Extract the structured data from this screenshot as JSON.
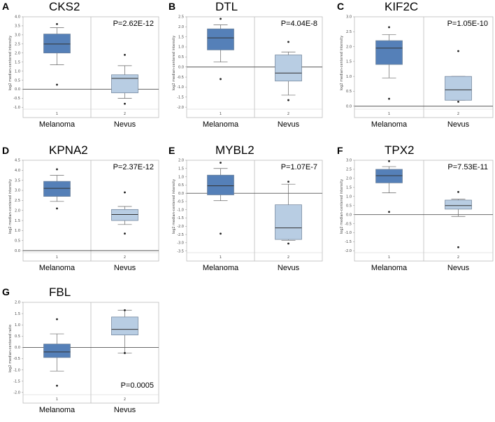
{
  "chart_data": [
    {
      "type": "box",
      "letter": "A",
      "title": "CKS2",
      "p_value": "P=2.62E-12",
      "p_pos": "top-right",
      "ylabel": "log2 median-centered intensity",
      "ylim": [
        -1.1,
        4.0
      ],
      "yticks": [
        4.0,
        3.5,
        3.0,
        2.5,
        2.0,
        1.5,
        1.0,
        0.5,
        0.0,
        -0.5,
        -1.0
      ],
      "ytick_labels": [
        "4.0",
        "3.5",
        "3.0",
        "2.5",
        "2.0",
        "1.5",
        "1.0",
        "0.5",
        "0.0",
        "-0.5",
        "-1.0"
      ],
      "groups": [
        {
          "id": "1",
          "name": "Melanoma",
          "color": "#5580b8",
          "q1": 2.0,
          "median": 2.5,
          "q3": 3.05,
          "whisker_low": 1.35,
          "whisker_high": 3.4,
          "outliers": [
            3.6,
            0.25
          ]
        },
        {
          "id": "2",
          "name": "Nevus",
          "color": "#b8cde3",
          "q1": -0.2,
          "median": 0.6,
          "q3": 0.8,
          "whisker_low": -0.5,
          "whisker_high": 1.3,
          "outliers": [
            1.9,
            -0.8
          ]
        }
      ]
    },
    {
      "type": "box",
      "letter": "B",
      "title": "DTL",
      "p_value": "P=4.04E-8",
      "p_pos": "top-right",
      "ylabel": "log2 median-centered intensity",
      "ylim": [
        -2.1,
        2.5
      ],
      "yticks": [
        2.5,
        2.0,
        1.5,
        1.0,
        0.5,
        0.0,
        -0.5,
        -1.0,
        -1.5,
        -2.0
      ],
      "ytick_labels": [
        "2.5",
        "2.0",
        "1.5",
        "1.0",
        "0.5",
        "0.0",
        "-0.5",
        "-1.0",
        "-1.5",
        "-2.0"
      ],
      "groups": [
        {
          "id": "1",
          "name": "Melanoma",
          "color": "#5580b8",
          "q1": 0.85,
          "median": 1.45,
          "q3": 1.9,
          "whisker_low": 0.25,
          "whisker_high": 2.1,
          "outliers": [
            2.4,
            -0.6
          ]
        },
        {
          "id": "2",
          "name": "Nevus",
          "color": "#b8cde3",
          "q1": -0.7,
          "median": -0.3,
          "q3": 0.6,
          "whisker_low": -1.4,
          "whisker_high": 0.75,
          "outliers": [
            1.25,
            -1.65
          ]
        }
      ]
    },
    {
      "type": "box",
      "letter": "C",
      "title": "KIF2C",
      "p_value": "P=1.05E-10",
      "p_pos": "top-right",
      "ylabel": "log2 median-centered intensity",
      "ylim": [
        -0.1,
        3.0
      ],
      "yticks": [
        3.0,
        2.5,
        2.0,
        1.5,
        1.0,
        0.5,
        0.0
      ],
      "ytick_labels": [
        "3.0",
        "2.5",
        "2.0",
        "1.5",
        "1.0",
        "0.5",
        "0.0"
      ],
      "groups": [
        {
          "id": "1",
          "name": "Melanoma",
          "color": "#5580b8",
          "q1": 1.4,
          "median": 1.95,
          "q3": 2.2,
          "whisker_low": 0.95,
          "whisker_high": 2.4,
          "outliers": [
            2.65,
            0.25
          ]
        },
        {
          "id": "2",
          "name": "Nevus",
          "color": "#b8cde3",
          "q1": 0.2,
          "median": 0.55,
          "q3": 1.0,
          "whisker_low": 0.2,
          "whisker_high": 1.0,
          "outliers": [
            1.85,
            0.15
          ]
        }
      ]
    },
    {
      "type": "box",
      "letter": "D",
      "title": "KPNA2",
      "p_value": "P=2.37E-12",
      "p_pos": "top-right",
      "ylabel": "log2 median-centered intensity",
      "ylim": [
        -0.1,
        4.5
      ],
      "yticks": [
        4.5,
        4.0,
        3.5,
        3.0,
        2.5,
        2.0,
        1.5,
        1.0,
        0.5,
        0.0
      ],
      "ytick_labels": [
        "4.5",
        "4.0",
        "3.5",
        "3.0",
        "2.5",
        "2.0",
        "1.5",
        "1.0",
        "0.5",
        "0.0"
      ],
      "groups": [
        {
          "id": "1",
          "name": "Melanoma",
          "color": "#5580b8",
          "q1": 2.7,
          "median": 3.1,
          "q3": 3.45,
          "whisker_low": 2.45,
          "whisker_high": 3.75,
          "outliers": [
            4.05,
            2.1
          ]
        },
        {
          "id": "2",
          "name": "Nevus",
          "color": "#b8cde3",
          "q1": 1.5,
          "median": 1.8,
          "q3": 2.05,
          "whisker_low": 1.3,
          "whisker_high": 2.2,
          "outliers": [
            2.9,
            0.85
          ]
        }
      ]
    },
    {
      "type": "box",
      "letter": "E",
      "title": "MYBL2",
      "p_value": "P=1.07E-7",
      "p_pos": "top-right",
      "ylabel": "log2 median-centered intensity",
      "ylim": [
        -3.6,
        2.0
      ],
      "yticks": [
        2.0,
        1.5,
        1.0,
        0.5,
        0.0,
        -0.5,
        -1.0,
        -1.5,
        -2.0,
        -2.5,
        -3.0,
        -3.5
      ],
      "ytick_labels": [
        "2.0",
        "1.5",
        "1.0",
        "0.5",
        "0.0",
        "-0.5",
        "-1.0",
        "-1.5",
        "-2.0",
        "-2.5",
        "-3.0",
        "-3.5"
      ],
      "groups": [
        {
          "id": "1",
          "name": "Melanoma",
          "color": "#5580b8",
          "q1": -0.1,
          "median": 0.45,
          "q3": 1.1,
          "whisker_low": -0.45,
          "whisker_high": 1.5,
          "outliers": [
            1.85,
            -2.45
          ]
        },
        {
          "id": "2",
          "name": "Nevus",
          "color": "#b8cde3",
          "q1": -2.8,
          "median": -2.1,
          "q3": -0.7,
          "whisker_low": -2.85,
          "whisker_high": 0.55,
          "outliers": [
            0.7,
            -3.05
          ]
        }
      ]
    },
    {
      "type": "box",
      "letter": "F",
      "title": "TPX2",
      "p_value": "P=7.53E-11",
      "p_pos": "top-right",
      "ylabel": "log2 median-centered intensity",
      "ylim": [
        -2.1,
        3.0
      ],
      "yticks": [
        3.0,
        2.5,
        2.0,
        1.5,
        1.0,
        0.5,
        0.0,
        -0.5,
        -1.0,
        -1.5,
        -2.0
      ],
      "ytick_labels": [
        "3.0",
        "2.5",
        "2.0",
        "1.5",
        "1.0",
        "0.5",
        "0.0",
        "-0.5",
        "-1.0",
        "-1.5",
        "-2.0"
      ],
      "groups": [
        {
          "id": "1",
          "name": "Melanoma",
          "color": "#5580b8",
          "q1": 1.75,
          "median": 2.15,
          "q3": 2.5,
          "whisker_low": 1.2,
          "whisker_high": 2.65,
          "outliers": [
            2.95,
            0.15
          ]
        },
        {
          "id": "2",
          "name": "Nevus",
          "color": "#b8cde3",
          "q1": 0.3,
          "median": 0.5,
          "q3": 0.8,
          "whisker_low": -0.1,
          "whisker_high": 0.85,
          "outliers": [
            1.25,
            -1.8
          ]
        }
      ]
    },
    {
      "type": "box",
      "letter": "G",
      "title": "FBL",
      "p_value": "P=0.0005",
      "p_pos": "bottom-right",
      "ylabel": "log2 median-centered ratio",
      "ylim": [
        -2.1,
        2.0
      ],
      "yticks": [
        2.0,
        1.5,
        1.0,
        0.5,
        0.0,
        -0.5,
        -1.0,
        -1.5,
        -2.0
      ],
      "ytick_labels": [
        "2.0",
        "1.5",
        "1.0",
        "0.5",
        "0.0",
        "-0.5",
        "-1.0",
        "-1.5",
        "-2.0"
      ],
      "groups": [
        {
          "id": "1",
          "name": "Melanoma",
          "color": "#5580b8",
          "q1": -0.45,
          "median": -0.2,
          "q3": 0.15,
          "whisker_low": -1.05,
          "whisker_high": 0.6,
          "outliers": [
            1.25,
            -1.7
          ]
        },
        {
          "id": "2",
          "name": "Nevus",
          "color": "#b8cde3",
          "q1": 0.55,
          "median": 0.8,
          "q3": 1.35,
          "whisker_low": -0.25,
          "whisker_high": 1.65,
          "outliers": [
            1.65,
            -0.25
          ]
        }
      ]
    }
  ]
}
